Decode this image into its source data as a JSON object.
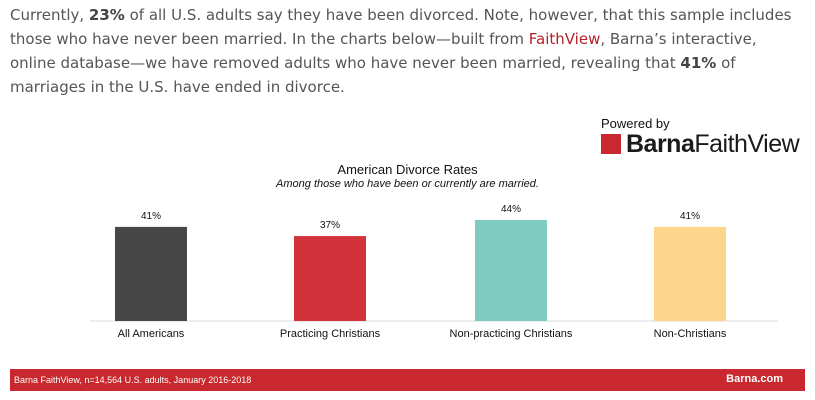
{
  "intro": {
    "p1": "Currently, ",
    "b1": "23%",
    "p2": " of all U.S. adults say they have been divorced. Note, however, that this sample includes those who have never been married. In the charts below—built from ",
    "link": "FaithView",
    "p3": ", Barna’s interactive, online database—we have removed adults who have never been married, revealing that ",
    "b2": "41%",
    "p4": " of marriages in the U.S. have ended in divorce."
  },
  "brand": {
    "powered": "Powered by",
    "name_bold": "Barna",
    "name_light": "FaithView",
    "color": "#c8282e"
  },
  "chart_data": {
    "type": "bar",
    "title": "American Divorce Rates",
    "subtitle": "Among those who have been or currently are married.",
    "categories": [
      "All Americans",
      "Practicing Christians",
      "Non-practicing Christians",
      "Non-Christians"
    ],
    "values": [
      41,
      37,
      44,
      41
    ],
    "value_labels": [
      "41%",
      "37%",
      "44%",
      "41%"
    ],
    "colors": [
      "#474747",
      "#d2323a",
      "#7ecbc1",
      "#fed58c"
    ],
    "ylim": [
      0,
      44
    ],
    "grid": false,
    "xlabel": "",
    "ylabel": ""
  },
  "footer": {
    "source": "Barna FaithView, n=14,564 U.S. adults, January 2016-2018",
    "site": "Barna.com"
  }
}
